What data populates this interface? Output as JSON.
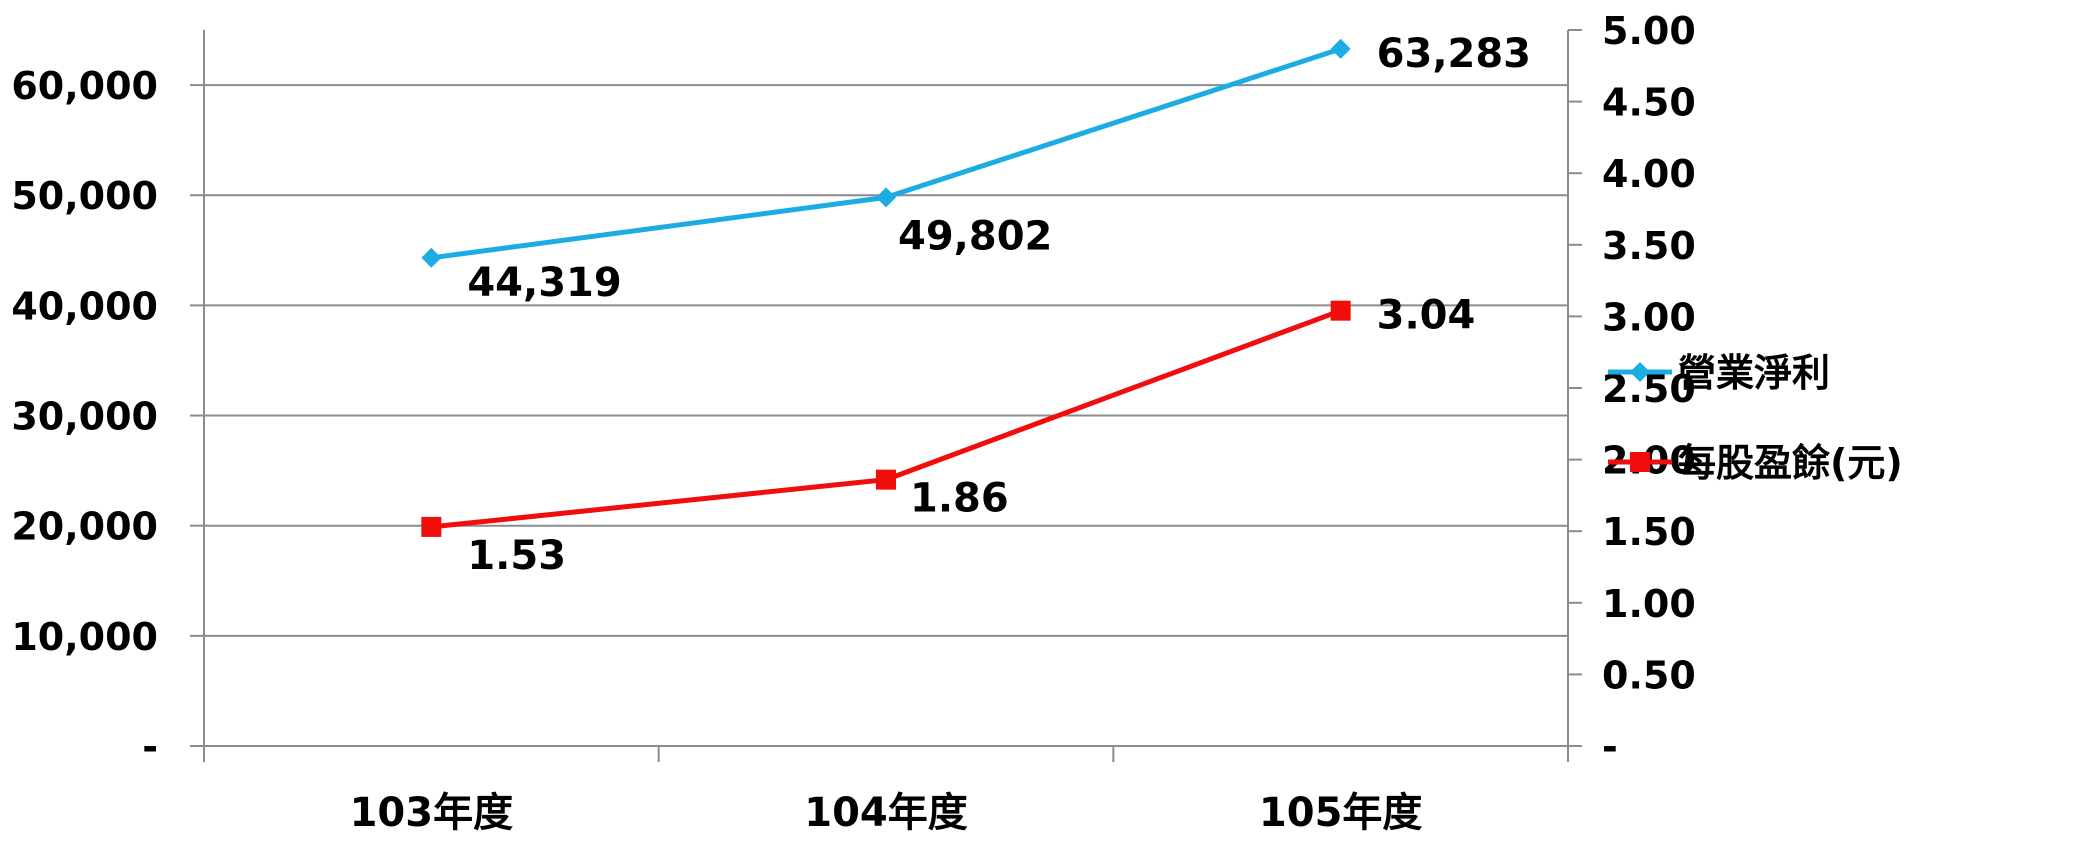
{
  "chart_data": {
    "type": "line",
    "categories": [
      "103年度",
      "104年度",
      "105年度"
    ],
    "series": [
      {
        "name": "營業淨利",
        "values": [
          44319,
          49802,
          63283
        ],
        "labels": [
          "44,319",
          "49,802",
          "63,283"
        ],
        "axis": "left",
        "color": "#1CACE3",
        "marker": "diamond"
      },
      {
        "name": "每股盈餘(元)",
        "values": [
          1.53,
          1.86,
          3.04
        ],
        "labels": [
          "1.53",
          "1.86",
          "3.04"
        ],
        "axis": "right",
        "color": "#F20D0D",
        "marker": "square"
      }
    ],
    "y_left": {
      "min": 0,
      "max": 65000,
      "ticks": [
        0,
        10000,
        20000,
        30000,
        40000,
        50000,
        60000
      ],
      "tick_labels": [
        "-",
        "10,000",
        "20,000",
        "30,000",
        "40,000",
        "50,000",
        "60,000"
      ]
    },
    "y_right": {
      "min": 0,
      "max": 5,
      "ticks": [
        0,
        0.5,
        1,
        1.5,
        2,
        2.5,
        3,
        3.5,
        4,
        4.5,
        5
      ],
      "tick_labels": [
        "-",
        "0.50",
        "1.00",
        "1.50",
        "2.00",
        "2.50",
        "3.00",
        "3.50",
        "4.00",
        "4.50",
        "5.00"
      ]
    },
    "grid": true,
    "legend_position": "right"
  }
}
